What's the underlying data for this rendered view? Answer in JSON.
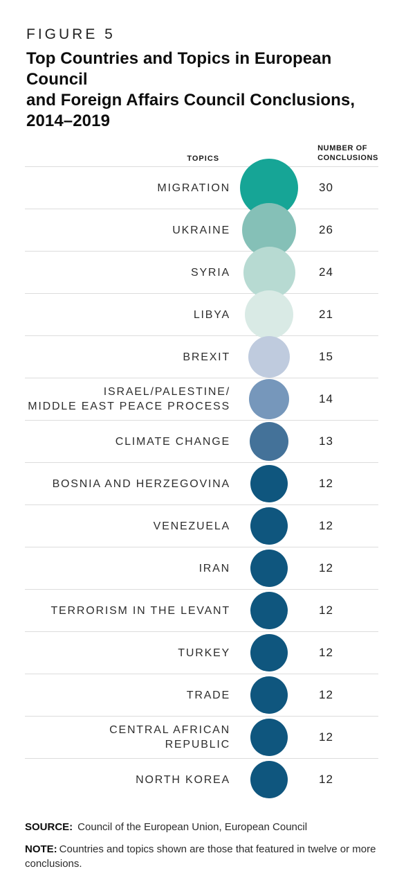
{
  "figure": {
    "label": "FIGURE 5",
    "title_lines": "Top Countries and Topics in European Council\nand Foreign Affairs Council Conclusions,\n2014–2019"
  },
  "table_header": {
    "topics": "TOPICS",
    "number": "NUMBER OF\nCONCLUSIONS"
  },
  "chart_data": {
    "type": "table",
    "title": "Top Countries and Topics in European Council and Foreign Affairs Council Conclusions, 2014–2019",
    "columns": [
      "TOPICS",
      "NUMBER OF CONCLUSIONS"
    ],
    "categories": [
      "MIGRATION",
      "UKRAINE",
      "SYRIA",
      "LIBYA",
      "BREXIT",
      "ISRAEL/PALESTINE/ MIDDLE EAST PEACE PROCESS",
      "CLIMATE CHANGE",
      "BOSNIA AND HERZEGOVINA",
      "VENEZUELA",
      "IRAN",
      "TERRORISM IN THE LEVANT",
      "TURKEY",
      "TRADE",
      "CENTRAL AFRICAN REPUBLIC",
      "NORTH KOREA"
    ],
    "values": [
      30,
      26,
      24,
      21,
      15,
      14,
      13,
      12,
      12,
      12,
      12,
      12,
      12,
      12,
      12
    ],
    "bubble_encoding": "circle area and color encode number of conclusions",
    "rows": [
      {
        "label": "MIGRATION",
        "value": 30,
        "color": "#16A596",
        "diameter": 84
      },
      {
        "label": "UKRAINE",
        "value": 26,
        "color": "#85C0B7",
        "diameter": 78
      },
      {
        "label": "SYRIA",
        "value": 24,
        "color": "#B7DAD2",
        "diameter": 75
      },
      {
        "label": "LIBYA",
        "value": 21,
        "color": "#D9EAE5",
        "diameter": 70
      },
      {
        "label": "BREXIT",
        "value": 15,
        "color": "#BFCBDE",
        "diameter": 60
      },
      {
        "label": "ISRAEL/PALESTINE/\nMIDDLE EAST PEACE PROCESS",
        "value": 14,
        "color": "#7697BB",
        "diameter": 58
      },
      {
        "label": "CLIMATE CHANGE",
        "value": 13,
        "color": "#447299",
        "diameter": 56
      },
      {
        "label": "BOSNIA AND HERZEGOVINA",
        "value": 12,
        "color": "#0F567E",
        "diameter": 54
      },
      {
        "label": "VENEZUELA",
        "value": 12,
        "color": "#0F567E",
        "diameter": 54
      },
      {
        "label": "IRAN",
        "value": 12,
        "color": "#0F567E",
        "diameter": 54
      },
      {
        "label": "TERRORISM IN THE LEVANT",
        "value": 12,
        "color": "#0F567E",
        "diameter": 54
      },
      {
        "label": "TURKEY",
        "value": 12,
        "color": "#0F567E",
        "diameter": 54
      },
      {
        "label": "TRADE",
        "value": 12,
        "color": "#0F567E",
        "diameter": 54
      },
      {
        "label": "CENTRAL AFRICAN\nREPUBLIC",
        "value": 12,
        "color": "#0F567E",
        "diameter": 54
      },
      {
        "label": "NORTH KOREA",
        "value": 12,
        "color": "#0F567E",
        "diameter": 54
      }
    ]
  },
  "footer": {
    "source_label": "SOURCE:",
    "source_text": "Council of the European Union, European Council",
    "note_label": "NOTE:",
    "note_text": "Countries and topics shown are those that featured in twelve or more conclusions."
  },
  "colors": {
    "background": "#FFFFFF",
    "divider": "#DCDCDC",
    "teal_max": "#16A596",
    "blue_min": "#0F567E"
  }
}
